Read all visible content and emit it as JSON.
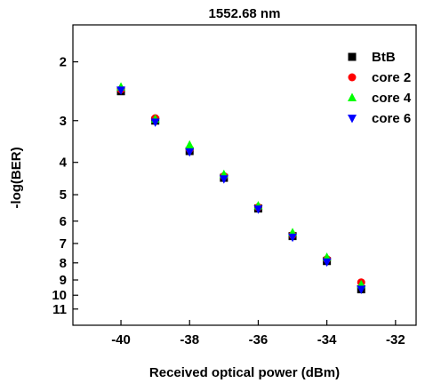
{
  "chart_data": {
    "type": "scatter",
    "title": "1552.68 nm",
    "xlabel": "Received optical power (dBm)",
    "ylabel": "-log(BER)",
    "xlim": [
      -41.4,
      -31.4
    ],
    "x_ticks": [
      -40,
      -38,
      -36,
      -34,
      -32
    ],
    "x_tick_labels": [
      "-40",
      "-38",
      "-36",
      "-34",
      "-32"
    ],
    "y_scale": "log(-log(BER))",
    "ylim": [
      1.55,
      12.3
    ],
    "y_ticks": [
      2,
      3,
      4,
      5,
      6,
      7,
      8,
      9,
      10,
      11
    ],
    "y_tick_labels": [
      "2",
      "3",
      "4",
      "5",
      "6",
      "7",
      "8",
      "9",
      "10",
      "11"
    ],
    "y_reversed": true,
    "legend_position": "top-right",
    "grid": false,
    "series": [
      {
        "name": "BtB",
        "marker": "square",
        "color": "#000000",
        "x": [
          -40,
          -39,
          -38,
          -37,
          -36,
          -35,
          -34,
          -33
        ],
        "y": [
          2.45,
          3.0,
          3.7,
          4.45,
          5.5,
          6.65,
          7.9,
          9.6
        ]
      },
      {
        "name": "core 2",
        "marker": "circle",
        "color": "#ff0000",
        "x": [
          -40,
          -39,
          -38,
          -37,
          -36,
          -35,
          -34,
          -33
        ],
        "y": [
          2.42,
          2.95,
          3.65,
          4.4,
          5.45,
          6.6,
          7.8,
          9.15
        ]
      },
      {
        "name": "core 4",
        "marker": "triangle-up",
        "color": "#00ff00",
        "x": [
          -40,
          -39,
          -38,
          -37,
          -36,
          -35,
          -34,
          -33
        ],
        "y": [
          2.38,
          2.97,
          3.55,
          4.35,
          5.4,
          6.5,
          7.7,
          9.3
        ]
      },
      {
        "name": "core 6",
        "marker": "triangle-down",
        "color": "#0000ff",
        "x": [
          -40,
          -39,
          -38,
          -37,
          -36,
          -35,
          -34,
          -33
        ],
        "y": [
          2.43,
          3.03,
          3.72,
          4.48,
          5.52,
          6.7,
          7.95,
          9.6
        ]
      }
    ]
  }
}
